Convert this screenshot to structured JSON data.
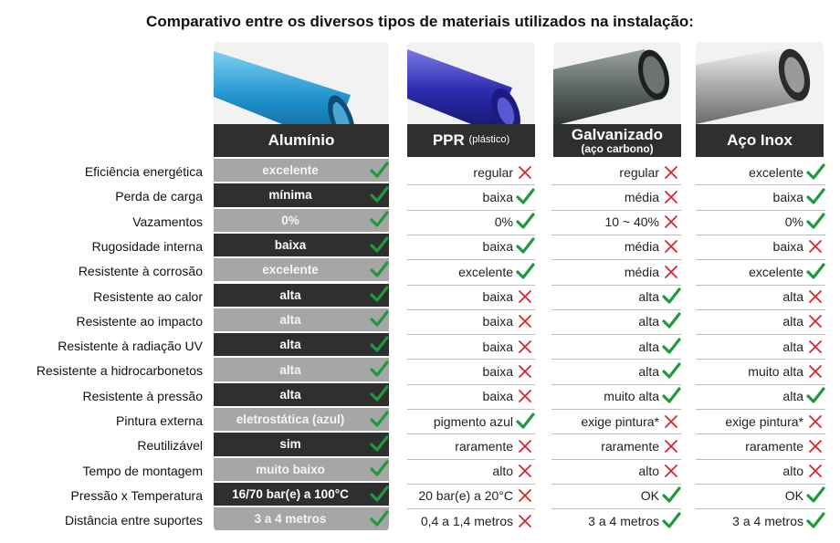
{
  "title": "Comparativo entre os diversos tipos de materiais utilizados na instalação:",
  "colors": {
    "check": "#1f9a3b",
    "cross": "#d9262c",
    "dark": "#2f2f2f",
    "light": "#a6a6a6"
  },
  "chart_data": {
    "type": "table",
    "title": "Comparativo entre os diversos tipos de materiais utilizados na instalação:",
    "rows": [
      "Eficiência energética",
      "Perda de carga",
      "Vazamentos",
      "Rugosidade interna",
      "Resistente à corrosão",
      "Resistente ao calor",
      "Resistente ao impacto",
      "Resistente à radiação UV",
      "Resistente a hidrocarbonetos",
      "Resistente à pressão",
      "Pintura externa",
      "Reutilizável",
      "Tempo de montagem",
      "Pressão x Temperatura",
      "Distância entre suportes"
    ],
    "columns": [
      {
        "name": "Alumínio",
        "note": "",
        "values": [
          "excelente",
          "mínima",
          "0%",
          "baixa",
          "excelente",
          "alta",
          "alta",
          "alta",
          "alta",
          "alta",
          "eletrostática (azul)",
          "sim",
          "muito baixo",
          "16/70 bar(e) a 100°C",
          "3 a 4 metros"
        ],
        "marks": [
          "check",
          "check",
          "check",
          "check",
          "check",
          "check",
          "check",
          "check",
          "check",
          "check",
          "check",
          "check",
          "check",
          "check",
          "check"
        ]
      },
      {
        "name": "PPR",
        "note": "(plástico)",
        "values": [
          "regular",
          "baixa",
          "0%",
          "baixa",
          "excelente",
          "baixa",
          "baixa",
          "baixa",
          "baixa",
          "baixa",
          "pigmento azul",
          "raramente",
          "alto",
          "20 bar(e) a 20°C",
          "0,4 a 1,4 metros"
        ],
        "marks": [
          "cross",
          "check",
          "check",
          "check",
          "check",
          "cross",
          "cross",
          "cross",
          "cross",
          "cross",
          "check",
          "cross",
          "cross",
          "cross",
          "cross"
        ]
      },
      {
        "name": "Galvanizado",
        "note": "(aço carbono)",
        "values": [
          "regular",
          "média",
          "10 ~ 40%",
          "média",
          "média",
          "alta",
          "alta",
          "alta",
          "alta",
          "muito alta",
          "exige pintura*",
          "raramente",
          "alto",
          "OK",
          "3 a 4 metros"
        ],
        "marks": [
          "cross",
          "cross",
          "cross",
          "cross",
          "cross",
          "check",
          "check",
          "check",
          "check",
          "check",
          "cross",
          "cross",
          "cross",
          "check",
          "check"
        ]
      },
      {
        "name": "Aço Inox",
        "note": "",
        "values": [
          "excelente",
          "baixa",
          "0%",
          "baixa",
          "excelente",
          "alta",
          "alta",
          "alta",
          "muito alta",
          "alta",
          "exige pintura*",
          "raramente",
          "alto",
          "OK",
          "3 a 4 metros"
        ],
        "marks": [
          "check",
          "check",
          "check",
          "cross",
          "check",
          "cross",
          "cross",
          "cross",
          "cross",
          "check",
          "cross",
          "cross",
          "cross",
          "check",
          "check"
        ]
      }
    ]
  }
}
